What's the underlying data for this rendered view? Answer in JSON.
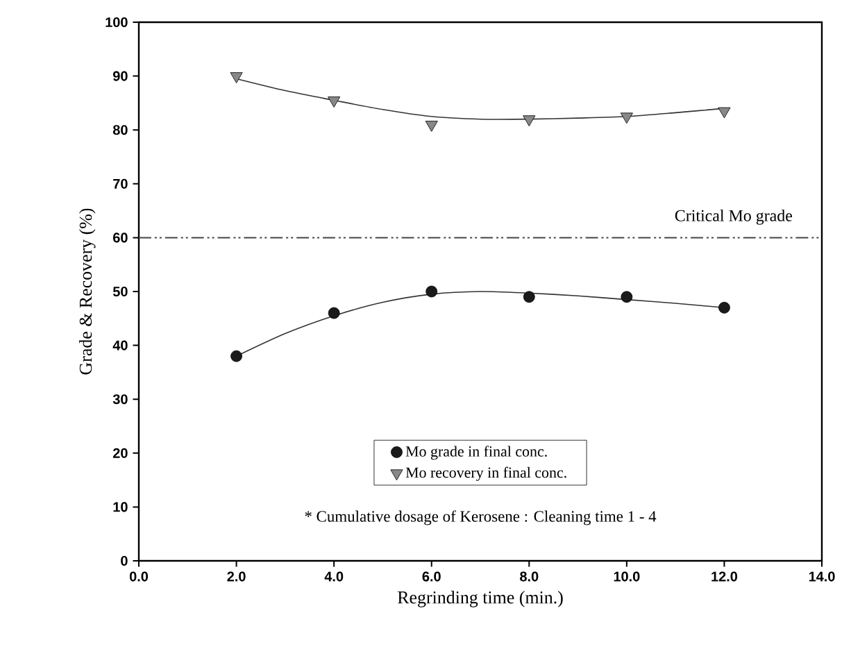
{
  "chart_data": {
    "type": "scatter",
    "xlabel": "Regrinding time (min.)",
    "ylabel": "Grade & Recovery (%)",
    "xlim": [
      0,
      14
    ],
    "ylim": [
      0,
      100
    ],
    "xticks": [
      {
        "value": 0,
        "label": "0.0"
      },
      {
        "value": 2,
        "label": "2.0"
      },
      {
        "value": 4,
        "label": "4.0"
      },
      {
        "value": 6,
        "label": "6.0"
      },
      {
        "value": 8,
        "label": "8.0"
      },
      {
        "value": 10,
        "label": "10.0"
      },
      {
        "value": 12,
        "label": "12.0"
      },
      {
        "value": 14,
        "label": "14.0"
      }
    ],
    "yticks": [
      0,
      10,
      20,
      30,
      40,
      50,
      60,
      70,
      80,
      90,
      100
    ],
    "series": [
      {
        "name": "Mo grade in final conc.",
        "marker": "circle",
        "color": "#1a1a1a",
        "x": [
          2,
          4,
          6,
          8,
          10,
          12
        ],
        "values": [
          38,
          46,
          50,
          49,
          49,
          47
        ]
      },
      {
        "name": "Mo recovery in final conc.",
        "marker": "triangle",
        "color": "#888888",
        "x": [
          2,
          4,
          6,
          8,
          10,
          12
        ],
        "values": [
          90,
          85.5,
          81,
          82,
          82.5,
          83.5
        ]
      },
      {
        "type": "line",
        "marker": "none",
        "color": "#333333",
        "x": [
          2,
          3,
          4,
          5,
          6,
          7,
          8,
          9,
          10,
          11,
          12
        ],
        "values": [
          38,
          42.2,
          45.5,
          48,
          49.5,
          50,
          49.7,
          49.2,
          48.5,
          47.8,
          47
        ]
      },
      {
        "type": "line",
        "marker": "none",
        "color": "#333333",
        "x": [
          2,
          3,
          4,
          5,
          6,
          7,
          8,
          9,
          10,
          11,
          12
        ],
        "values": [
          89.5,
          87.3,
          85.5,
          83.8,
          82.5,
          82,
          82,
          82.2,
          82.5,
          83.2,
          84
        ]
      }
    ],
    "ref_lines": [
      {
        "axis": "y",
        "value": 60,
        "label": "Critical Mo grade",
        "color": "#444444",
        "line_style": "dashdotdot"
      }
    ],
    "annotations": [
      "* Cumulative dosage of Kerosene : Cleaning time 1 - 4"
    ],
    "legend": "bottom",
    "grid": false
  }
}
